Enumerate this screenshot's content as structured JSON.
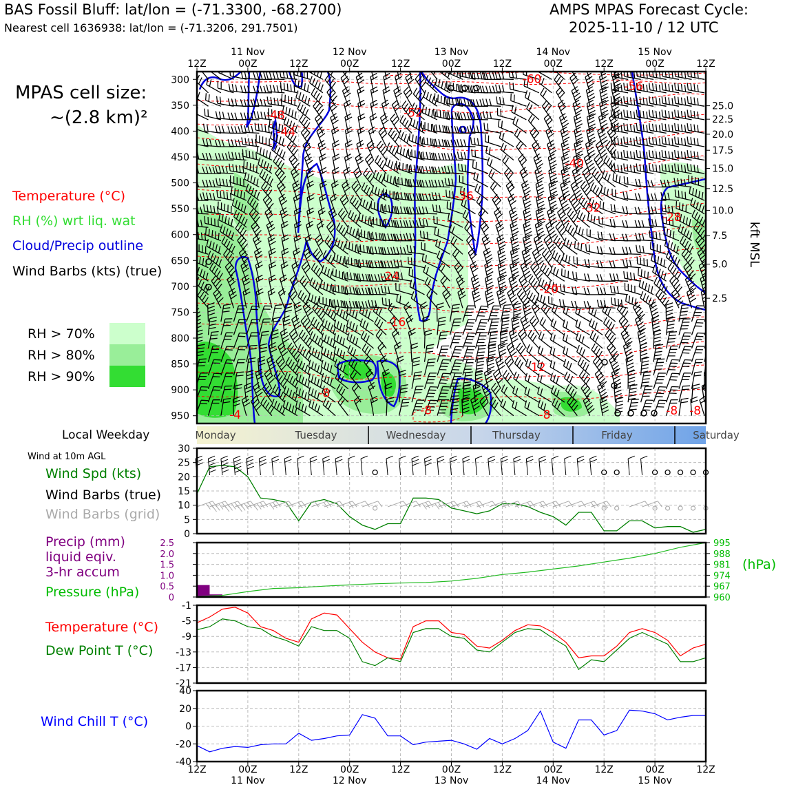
{
  "header": {
    "title": "BAS Fossil Bluff: lat/lon = (-71.3300, -68.2700)",
    "subtitle": "Nearest cell 1636938: lat/lon = (-71.3206, 291.7501)",
    "cycle_label": "AMPS MPAS Forecast Cycle:",
    "cycle_date": "2025-11-10 / 12 UTC",
    "cell_size_label": "MPAS cell size:",
    "cell_size_value": "~(2.8 km)²"
  },
  "legend": {
    "temperature": "Temperature (°C)",
    "rh": "RH (%) wrt liq. wat",
    "cloud": "Cloud/Precip outline",
    "wind": "Wind Barbs (kts) (true)",
    "rh_levels": [
      "RH > 70%",
      "RH > 80%",
      "RH > 90%"
    ],
    "colors": {
      "temp": "#ff0000",
      "rh": "#33dd33",
      "cloud": "#0000dd",
      "precip": "#800080",
      "chill": "#0000ff",
      "dew": "#008000",
      "grid_barb": "#aaaaaa"
    }
  },
  "weekday_bar": {
    "label": "Local Weekday",
    "days": [
      "Monday",
      "Tuesday",
      "Wednesday",
      "Thursday",
      "Friday",
      "Saturday"
    ]
  },
  "panels": {
    "wind_header": "Wind at 10m AGL",
    "wind_spd": "Wind Spd (kts)",
    "wind_true": "Wind Barbs (true)",
    "wind_grid": "Wind Barbs (grid)",
    "precip_l1": "Precip (mm)",
    "precip_l2": "liquid eqiv.",
    "precip_l3": "3-hr accum",
    "pressure": "Pressure (hPa)",
    "pressure_unit": "(hPa)",
    "temp": "Temperature (°C)",
    "dew": "Dew Point T (°C)",
    "chill": "Wind Chill T (°C)"
  },
  "chart_data": {
    "type": "line",
    "time_axis": {
      "hours": [
        0,
        12,
        24,
        36,
        48,
        60,
        72,
        84,
        96,
        108,
        120
      ],
      "hour_labels": [
        "12Z",
        "00Z",
        "12Z",
        "00Z",
        "12Z",
        "00Z",
        "12Z",
        "00Z",
        "12Z",
        "00Z",
        "12Z"
      ],
      "dates": [
        "",
        "11 Nov",
        "",
        "12 Nov",
        "",
        "13 Nov",
        "",
        "14 Nov",
        "",
        "15 Nov",
        ""
      ]
    },
    "upper_panel": {
      "ylabel_right": "kft MSL",
      "pressure_levels": [
        300,
        350,
        400,
        450,
        500,
        550,
        600,
        650,
        700,
        750,
        800,
        850,
        900,
        950
      ],
      "height_labels": [
        "25.0",
        "22.5",
        "20.0",
        "17.5",
        "15.0",
        "12.5",
        "10.0",
        "7.5",
        "5.0",
        "2.5"
      ],
      "height_label_pressures": [
        351,
        377,
        406,
        437,
        472,
        511,
        553,
        602,
        657,
        723
      ],
      "temp_labels": [
        {
          "t": 79,
          "p": 299,
          "text": "-60"
        },
        {
          "t": 103,
          "p": 313,
          "text": "-56"
        },
        {
          "t": 51,
          "p": 364,
          "text": "-52"
        },
        {
          "t": 18.5,
          "p": 369,
          "text": "-48"
        },
        {
          "t": 21,
          "p": 401,
          "text": "-44"
        },
        {
          "t": 89,
          "p": 462,
          "text": "-40"
        },
        {
          "t": 63,
          "p": 525,
          "text": "-36"
        },
        {
          "t": 93,
          "p": 548,
          "text": "-32"
        },
        {
          "t": 112,
          "p": 566,
          "text": "-28"
        },
        {
          "t": 45.5,
          "p": 680,
          "text": "-24"
        },
        {
          "t": 83,
          "p": 705,
          "text": "-20"
        },
        {
          "t": 47,
          "p": 769,
          "text": "-16"
        },
        {
          "t": 80,
          "p": 856,
          "text": "-12"
        },
        {
          "t": 30,
          "p": 906,
          "text": "-8"
        },
        {
          "t": 54,
          "p": 939,
          "text": "-8"
        },
        {
          "t": 82,
          "p": 948,
          "text": "-8"
        },
        {
          "t": 112,
          "p": 940,
          "text": "-8"
        },
        {
          "t": 117.5,
          "p": 940,
          "text": "-8"
        },
        {
          "t": 9,
          "p": 948,
          "text": "-4"
        }
      ]
    },
    "wind_panel": {
      "ylim": [
        0,
        30
      ],
      "yticks": [
        0,
        5,
        10,
        15,
        20,
        25,
        30
      ],
      "speed_t": [
        0,
        3,
        6,
        9,
        12,
        15,
        18,
        21,
        24,
        27,
        30,
        33,
        36,
        39,
        42,
        45,
        48,
        51,
        54,
        57,
        60,
        63,
        66,
        69,
        72,
        75,
        78,
        81,
        84,
        87,
        90,
        93,
        96,
        99,
        102,
        105,
        108,
        111,
        114,
        117,
        120
      ],
      "speed_kts": [
        14,
        23.5,
        24,
        23.5,
        20,
        12.5,
        12,
        11,
        4.5,
        11,
        12,
        10.5,
        6,
        3,
        1.5,
        3.5,
        3.5,
        12.5,
        12.5,
        12,
        9,
        8,
        7,
        8,
        10.5,
        10.5,
        9.5,
        7.5,
        6,
        3,
        7.5,
        7.5,
        1,
        1,
        4.5,
        4.5,
        2,
        2.5,
        2.5,
        0.5,
        1.5
      ]
    },
    "precip_panel": {
      "ylim": [
        0,
        2.5
      ],
      "yticks": [
        0,
        0.5,
        1.0,
        1.5,
        2.0,
        2.5
      ],
      "precip_t": [
        0,
        3
      ],
      "precip_mm": [
        0.55,
        0.12
      ],
      "pressure_yticks": [
        960,
        967,
        974,
        981,
        988,
        995
      ],
      "pressure_t": [
        0,
        6,
        12,
        18,
        24,
        30,
        36,
        42,
        48,
        54,
        60,
        66,
        72,
        78,
        84,
        90,
        96,
        102,
        108,
        114,
        120
      ],
      "pressure_hpa": [
        960.3,
        961,
        963.5,
        965.5,
        966,
        967,
        967.8,
        968.5,
        969,
        969.3,
        970.3,
        972,
        974.5,
        976,
        978,
        980,
        982.5,
        985,
        988,
        992,
        995
      ]
    },
    "temp_panel": {
      "ylim": [
        -21,
        -1
      ],
      "yticks": [
        -1,
        -5,
        -9,
        -13,
        -17,
        -21
      ],
      "t": [
        0,
        3,
        6,
        9,
        12,
        15,
        18,
        21,
        24,
        27,
        30,
        33,
        36,
        39,
        42,
        45,
        48,
        51,
        54,
        57,
        60,
        63,
        66,
        69,
        72,
        75,
        78,
        81,
        84,
        87,
        90,
        93,
        96,
        99,
        102,
        105,
        108,
        111,
        114,
        117,
        120
      ],
      "temperature": [
        -5.5,
        -4,
        -2,
        -1.5,
        -3,
        -6.5,
        -7.5,
        -9.5,
        -10.5,
        -4.5,
        -3,
        -3.5,
        -7,
        -10.5,
        -13,
        -14.5,
        -14.8,
        -6.5,
        -5,
        -5,
        -8,
        -8.5,
        -11.5,
        -12,
        -10,
        -7.5,
        -6,
        -6.3,
        -8,
        -10.5,
        -14.5,
        -14,
        -14,
        -11.5,
        -8,
        -7,
        -8,
        -10,
        -14,
        -12,
        -11
      ],
      "dew_point": [
        -7.3,
        -6.5,
        -4.5,
        -5,
        -6.5,
        -7,
        -9,
        -10,
        -11.5,
        -6.5,
        -7.5,
        -7.5,
        -9.5,
        -15.5,
        -16.5,
        -14.5,
        -15.5,
        -8,
        -7,
        -7,
        -9,
        -9.5,
        -12.5,
        -13,
        -10.5,
        -8,
        -7,
        -7.3,
        -9.5,
        -11.5,
        -17.5,
        -15,
        -15.5,
        -12.5,
        -9.5,
        -8,
        -9.5,
        -11,
        -15.5,
        -15.5,
        -14.5
      ]
    },
    "chill_panel": {
      "ylim": [
        -40,
        40
      ],
      "yticks": [
        40,
        20,
        0,
        -20,
        -40
      ],
      "t": [
        0,
        3,
        6,
        9,
        12,
        15,
        18,
        21,
        24,
        27,
        30,
        33,
        36,
        39,
        42,
        45,
        48,
        51,
        54,
        57,
        60,
        63,
        66,
        69,
        72,
        75,
        78,
        81,
        84,
        87,
        90,
        93,
        96,
        99,
        102,
        105,
        108,
        111,
        114,
        117,
        120
      ],
      "wind_chill": [
        -22,
        -29,
        -25,
        -23,
        -24,
        -21,
        -20,
        -20,
        -8,
        -16,
        -14,
        -11,
        -10,
        13,
        9,
        -11,
        -11,
        -21,
        -18,
        -17,
        -16,
        -20,
        -26,
        -14,
        -20,
        -14,
        -5,
        17,
        -18,
        -25,
        7,
        7,
        -10,
        -5,
        18,
        17,
        14,
        7,
        10,
        12,
        12
      ]
    }
  }
}
